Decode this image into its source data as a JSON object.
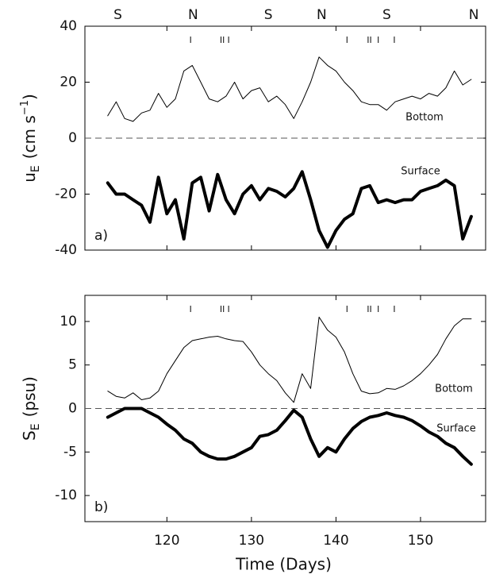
{
  "chart_data": [
    {
      "type": "line",
      "panel_label": "a)",
      "ylabel": {
        "symbol": "u",
        "subscript": "E",
        "units": "(cm s",
        "superscript": "−1",
        "close": ")"
      },
      "x": [
        113,
        114,
        115,
        116,
        117,
        118,
        119,
        120,
        121,
        122,
        123,
        124,
        125,
        126,
        127,
        128,
        129,
        130,
        131,
        132,
        133,
        134,
        135,
        136,
        137,
        138,
        139,
        140,
        141,
        142,
        143,
        144,
        145,
        146,
        147,
        148,
        149,
        150,
        151,
        152,
        153,
        154,
        155,
        156
      ],
      "series": [
        {
          "name": "Bottom",
          "color": "#000000",
          "linewidth": 1,
          "values": [
            8,
            13,
            7,
            6,
            9,
            10,
            16,
            11,
            14,
            24,
            26,
            20,
            14,
            13,
            15,
            20,
            14,
            17,
            18,
            13,
            15,
            12,
            7,
            13,
            20,
            29,
            26,
            24,
            20,
            17,
            13,
            12,
            12,
            10,
            13,
            14,
            15,
            14,
            16,
            15,
            18,
            24,
            19,
            21
          ]
        },
        {
          "name": "Surface",
          "color": "#000000",
          "linewidth": 4,
          "values": [
            -16,
            -20,
            -20,
            -22,
            -24,
            -30,
            -14,
            -27,
            -22,
            -36,
            -16,
            -14,
            -26,
            -13,
            -22,
            -27,
            -20,
            -17,
            -22,
            -18,
            -19,
            -21,
            -18,
            -12,
            -22,
            -33,
            -39,
            -33,
            -29,
            -27,
            -18,
            -17,
            -23,
            -22,
            -23,
            -22,
            -22,
            -19,
            -18,
            -17,
            -15,
            -17,
            -36,
            -28
          ]
        }
      ],
      "xlim": [
        110.3,
        157.7
      ],
      "xticks": [
        120,
        130,
        140,
        150
      ],
      "show_xtick_labels": false,
      "ylim": [
        -40,
        40
      ],
      "yticks": [
        -40,
        -20,
        0,
        20,
        40
      ],
      "zero_line": true,
      "annotations": [
        {
          "text": "S",
          "x": 114.2
        },
        {
          "text": "N",
          "x": 123.1
        },
        {
          "text": "S",
          "x": 132.0
        },
        {
          "text": "N",
          "x": 138.3
        },
        {
          "text": "S",
          "x": 146.0
        },
        {
          "text": "N",
          "x": 156.3
        }
      ],
      "markers": [
        122.8,
        126.4,
        126.7,
        127.3,
        141.3,
        143.8,
        144.1,
        145.0,
        146.9
      ]
    },
    {
      "type": "line",
      "panel_label": "b)",
      "ylabel": {
        "symbol": "S",
        "subscript": "E",
        "units": "(psu)"
      },
      "xlabel": "Time (Days)",
      "x": [
        113,
        114,
        115,
        116,
        117,
        118,
        119,
        120,
        121,
        122,
        123,
        124,
        125,
        126,
        127,
        128,
        129,
        130,
        131,
        132,
        133,
        134,
        135,
        136,
        137,
        138,
        139,
        140,
        141,
        142,
        143,
        144,
        145,
        146,
        147,
        148,
        149,
        150,
        151,
        152,
        153,
        154,
        155,
        156
      ],
      "series": [
        {
          "name": "Bottom",
          "color": "#000000",
          "linewidth": 1,
          "values": [
            2,
            1.4,
            1.2,
            1.8,
            1,
            1.2,
            2,
            4,
            5.5,
            7,
            7.8,
            8,
            8.2,
            8.3,
            8,
            7.8,
            7.7,
            6.5,
            5,
            4,
            3.2,
            1.8,
            0.7,
            4,
            2.3,
            10.5,
            9,
            8.2,
            6.5,
            4,
            2,
            1.7,
            1.8,
            2.3,
            2.2,
            2.6,
            3.2,
            4,
            5,
            6.2,
            8,
            9.5,
            10.3,
            10.3
          ]
        },
        {
          "name": "Surface",
          "color": "#000000",
          "linewidth": 4,
          "values": [
            -1,
            -0.5,
            0,
            0,
            0,
            -0.5,
            -1,
            -1.8,
            -2.5,
            -3.5,
            -4,
            -5,
            -5.5,
            -5.8,
            -5.8,
            -5.5,
            -5,
            -4.5,
            -3.2,
            -3,
            -2.5,
            -1.4,
            -0.2,
            -1,
            -3.5,
            -5.5,
            -4.5,
            -5,
            -3.5,
            -2.3,
            -1.5,
            -1,
            -0.8,
            -0.5,
            -0.8,
            -1,
            -1.4,
            -2,
            -2.7,
            -3.2,
            -4,
            -4.5,
            -5.5,
            -6.4
          ]
        }
      ],
      "xlim": [
        110.3,
        157.7
      ],
      "xticks": [
        120,
        130,
        140,
        150
      ],
      "show_xtick_labels": true,
      "ylim": [
        -13,
        13
      ],
      "yticks": [
        -10,
        -5,
        0,
        5,
        10
      ],
      "zero_line": true,
      "markers": [
        122.8,
        126.4,
        126.7,
        127.3,
        141.3,
        143.8,
        144.1,
        145.0,
        146.9
      ]
    }
  ]
}
